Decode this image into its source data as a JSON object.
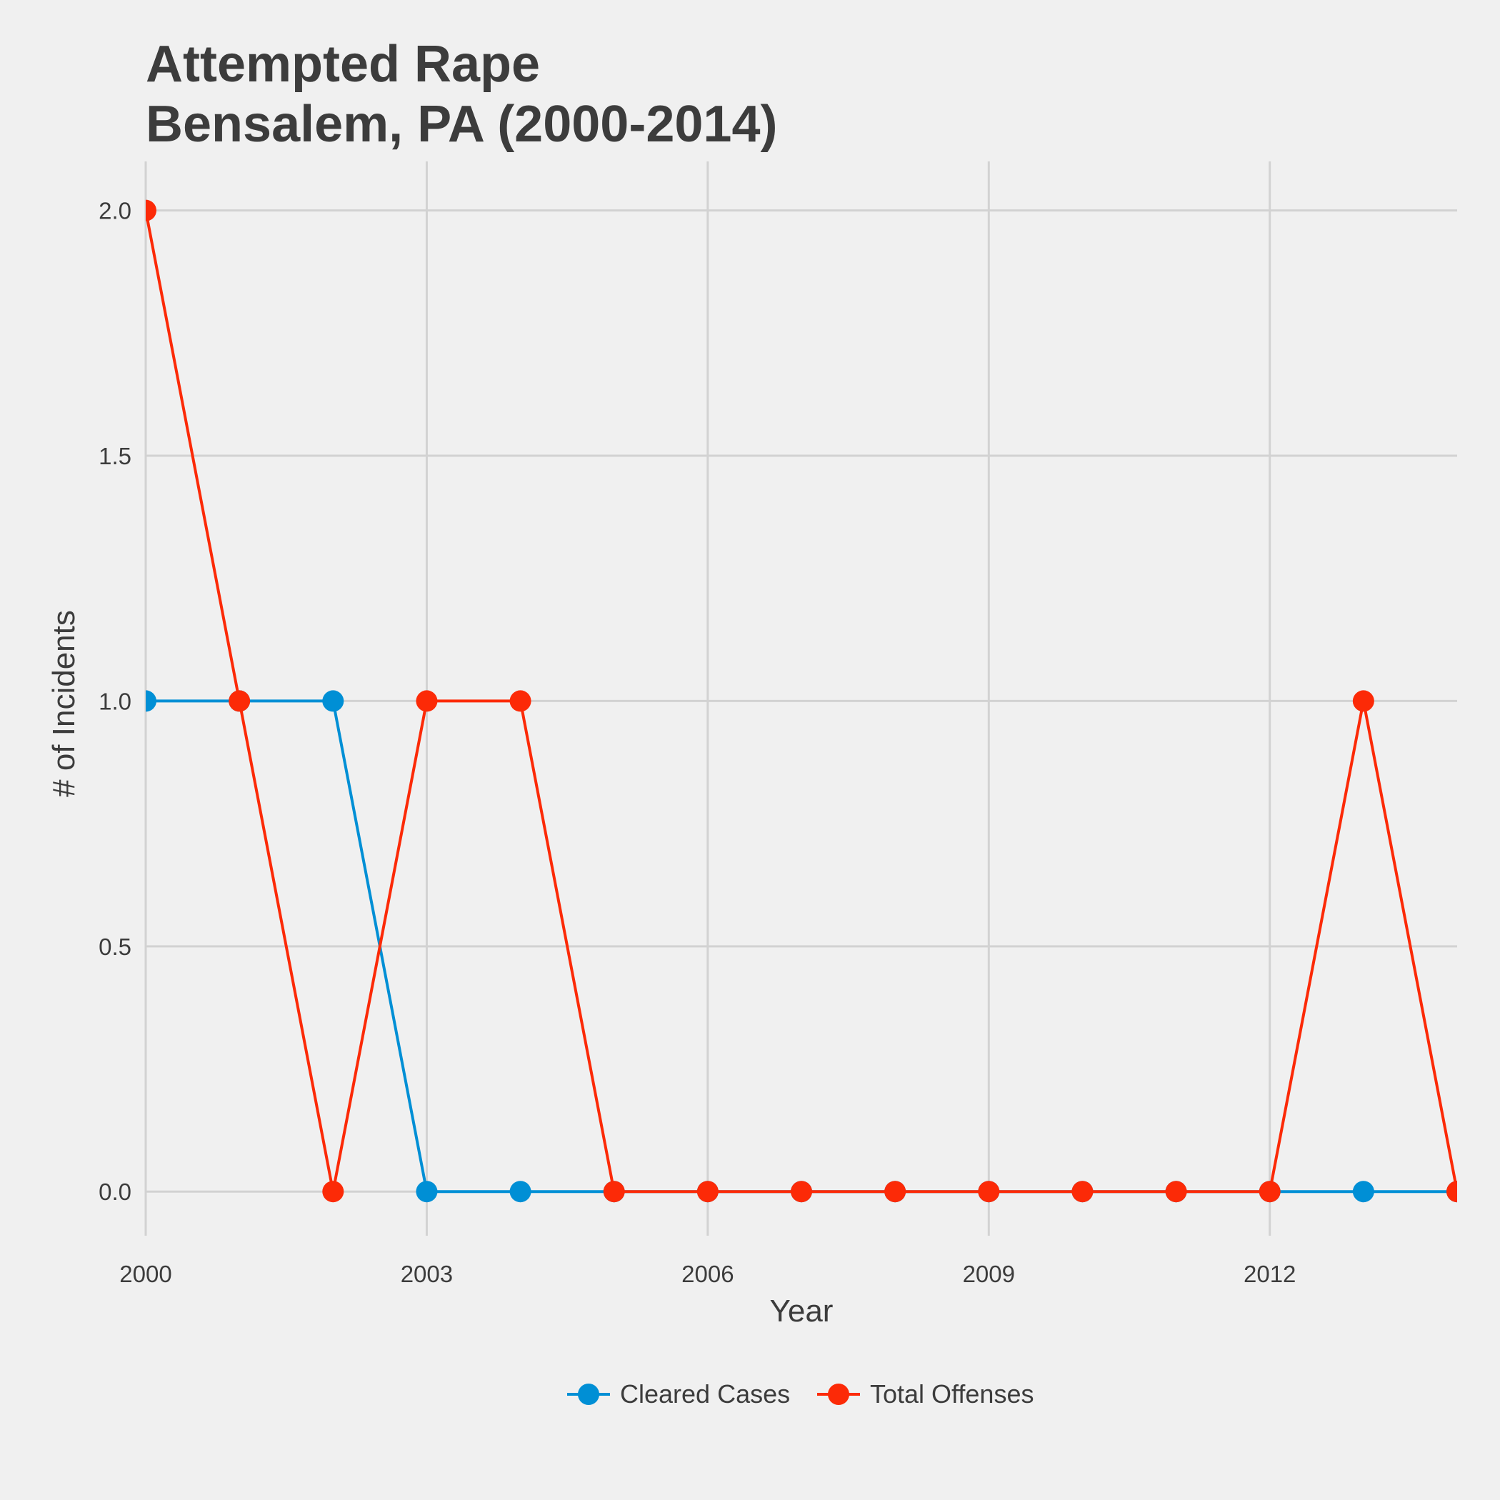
{
  "chart_data": {
    "type": "line",
    "title_lines": [
      "Attempted Rape",
      "Bensalem, PA (2000-2014)"
    ],
    "xlabel": "Year",
    "ylabel": "# of Incidents",
    "x": [
      2000,
      2001,
      2002,
      2003,
      2004,
      2005,
      2006,
      2007,
      2008,
      2009,
      2010,
      2011,
      2012,
      2013,
      2014
    ],
    "xlim": [
      2000,
      2014
    ],
    "ylim": [
      -0.09,
      2.1
    ],
    "x_ticks": [
      2000,
      2003,
      2006,
      2009,
      2012
    ],
    "x_tick_labels": [
      "2000",
      "2003",
      "2006",
      "2009",
      "2012"
    ],
    "y_ticks": [
      0,
      0.5,
      1,
      1.5,
      2
    ],
    "y_tick_labels": [
      "0.0",
      "0.5",
      "1.0",
      "1.5",
      "2.0"
    ],
    "grid": true,
    "legend_position": "bottom",
    "series": [
      {
        "name": "Cleared Cases",
        "color": "#008fd5",
        "values": [
          1,
          1,
          1,
          0,
          0,
          0,
          0,
          0,
          0,
          0,
          0,
          0,
          0,
          0,
          0
        ]
      },
      {
        "name": "Total Offenses",
        "color": "#fc2a07",
        "values": [
          2,
          1,
          0,
          1,
          1,
          0,
          0,
          0,
          0,
          0,
          0,
          0,
          0,
          1,
          0
        ]
      }
    ]
  }
}
